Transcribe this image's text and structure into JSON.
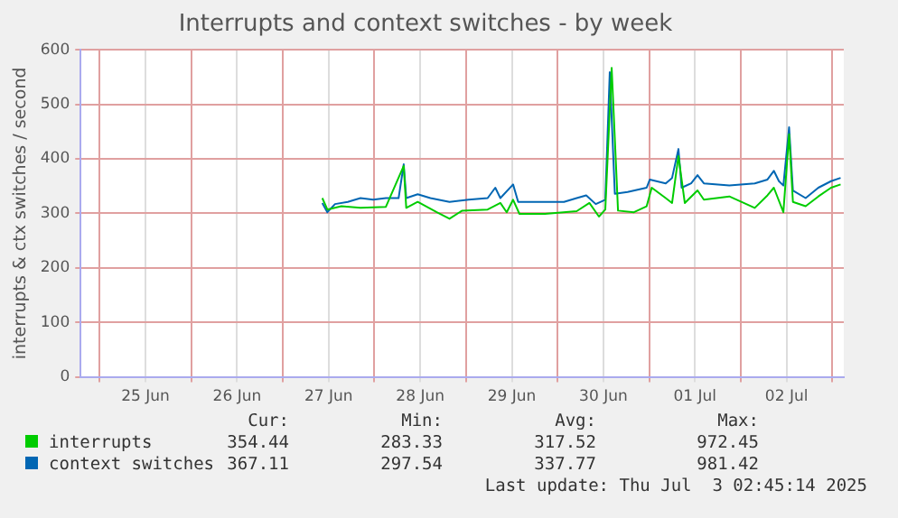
{
  "chart_data": {
    "type": "line",
    "title": "Interrupts and context switches - by week",
    "ylabel": "interrupts & ctx switches / second",
    "xlim": [
      "2025-06-24T19:00",
      "2025-07-03T03:00"
    ],
    "xticks": [
      {
        "value": "2025-06-25T00:00",
        "label": null
      },
      {
        "value": "2025-06-25T12:00",
        "label": "25 Jun"
      },
      {
        "value": "2025-06-26T00:00",
        "label": null
      },
      {
        "value": "2025-06-26T12:00",
        "label": "26 Jun"
      },
      {
        "value": "2025-06-27T00:00",
        "label": null
      },
      {
        "value": "2025-06-27T12:00",
        "label": "27 Jun"
      },
      {
        "value": "2025-06-28T00:00",
        "label": null
      },
      {
        "value": "2025-06-28T12:00",
        "label": "28 Jun"
      },
      {
        "value": "2025-06-29T00:00",
        "label": null
      },
      {
        "value": "2025-06-29T12:00",
        "label": "29 Jun"
      },
      {
        "value": "2025-06-30T00:00",
        "label": null
      },
      {
        "value": "2025-06-30T12:00",
        "label": "30 Jun"
      },
      {
        "value": "2025-07-01T00:00",
        "label": null
      },
      {
        "value": "2025-07-01T12:00",
        "label": "01 Jul"
      },
      {
        "value": "2025-07-02T00:00",
        "label": null
      },
      {
        "value": "2025-07-02T12:00",
        "label": "02 Jul"
      },
      {
        "value": "2025-07-03T00:00",
        "label": null
      }
    ],
    "ylim": [
      0,
      600
    ],
    "yticks": [
      0,
      100,
      200,
      300,
      400,
      500,
      600
    ],
    "grid": true,
    "legend": "bottom",
    "marker": "none",
    "line_style": "solid",
    "series": [
      {
        "name": "interrupts",
        "color": "#00cc00",
        "x": [
          "2025-06-27T10:20",
          "2025-06-27T11:40",
          "2025-06-27T15:20",
          "2025-06-27T20:20",
          "2025-06-28T03:00",
          "2025-06-28T07:40",
          "2025-06-28T08:20",
          "2025-06-28T11:20",
          "2025-06-28T16:20",
          "2025-06-28T19:40",
          "2025-06-28T23:00",
          "2025-06-29T05:40",
          "2025-06-29T09:00",
          "2025-06-29T10:40",
          "2025-06-29T12:20",
          "2025-06-29T14:00",
          "2025-06-29T20:40",
          "2025-06-30T05:00",
          "2025-06-30T08:20",
          "2025-06-30T10:50",
          "2025-06-30T12:30",
          "2025-06-30T14:10",
          "2025-06-30T15:50",
          "2025-06-30T20:00",
          "2025-06-30T23:20",
          "2025-07-01T00:40",
          "2025-07-01T04:20",
          "2025-07-01T06:00",
          "2025-07-01T07:40",
          "2025-07-01T09:20",
          "2025-07-01T12:40",
          "2025-07-01T14:20",
          "2025-07-01T21:00",
          "2025-07-02T03:40",
          "2025-07-02T07:00",
          "2025-07-02T08:40",
          "2025-07-02T11:10",
          "2025-07-02T12:40",
          "2025-07-02T13:40",
          "2025-07-02T17:00",
          "2025-07-02T20:20",
          "2025-07-02T23:40",
          "2025-07-03T02:10"
        ],
        "values": [
          328,
          307,
          313,
          310,
          312,
          387,
          310,
          321,
          302,
          290,
          305,
          307,
          319,
          302,
          325,
          299,
          299,
          304,
          319,
          294,
          307,
          567,
          305,
          302,
          313,
          347,
          328,
          319,
          405,
          319,
          342,
          325,
          331,
          310,
          333,
          347,
          302,
          445,
          321,
          313,
          331,
          347,
          353
        ]
      },
      {
        "name": "context switches",
        "color": "#0066b3",
        "x": [
          "2025-06-27T10:20",
          "2025-06-27T11:40",
          "2025-06-27T13:40",
          "2025-06-27T17:00",
          "2025-06-27T20:20",
          "2025-06-27T23:40",
          "2025-06-28T03:00",
          "2025-06-28T06:20",
          "2025-06-28T07:40",
          "2025-06-28T08:20",
          "2025-06-28T11:20",
          "2025-06-28T14:40",
          "2025-06-28T19:40",
          "2025-06-29T00:40",
          "2025-06-29T05:40",
          "2025-06-29T07:40",
          "2025-06-29T09:00",
          "2025-06-29T12:20",
          "2025-06-29T13:40",
          "2025-06-29T19:00",
          "2025-06-30T01:40",
          "2025-06-30T05:00",
          "2025-06-30T07:30",
          "2025-06-30T10:00",
          "2025-06-30T12:30",
          "2025-06-30T13:40",
          "2025-06-30T15:00",
          "2025-06-30T18:20",
          "2025-06-30T23:20",
          "2025-07-01T00:10",
          "2025-07-01T04:20",
          "2025-07-01T06:00",
          "2025-07-01T07:40",
          "2025-07-01T08:30",
          "2025-07-01T11:00",
          "2025-07-01T12:40",
          "2025-07-01T14:20",
          "2025-07-01T21:00",
          "2025-07-02T03:40",
          "2025-07-02T07:00",
          "2025-07-02T08:40",
          "2025-07-02T10:00",
          "2025-07-02T11:10",
          "2025-07-02T12:40",
          "2025-07-02T13:40",
          "2025-07-02T17:00",
          "2025-07-02T20:20",
          "2025-07-02T23:40",
          "2025-07-03T02:10"
        ],
        "values": [
          319,
          302,
          317,
          321,
          328,
          325,
          328,
          328,
          390,
          328,
          335,
          328,
          321,
          325,
          328,
          347,
          328,
          353,
          321,
          321,
          321,
          328,
          333,
          317,
          325,
          559,
          336,
          339,
          347,
          362,
          355,
          365,
          418,
          347,
          355,
          370,
          355,
          351,
          355,
          362,
          378,
          359,
          351,
          458,
          342,
          328,
          347,
          359,
          365
        ]
      }
    ],
    "annotations": [
      "Cur:",
      "Min:",
      "Avg:",
      "Max:",
      "354.44",
      "283.33",
      "317.52",
      "972.45",
      "367.11",
      "297.54",
      "337.77",
      "981.42",
      "Last update: Thu Jul  3 02:45:14 2025"
    ]
  }
}
